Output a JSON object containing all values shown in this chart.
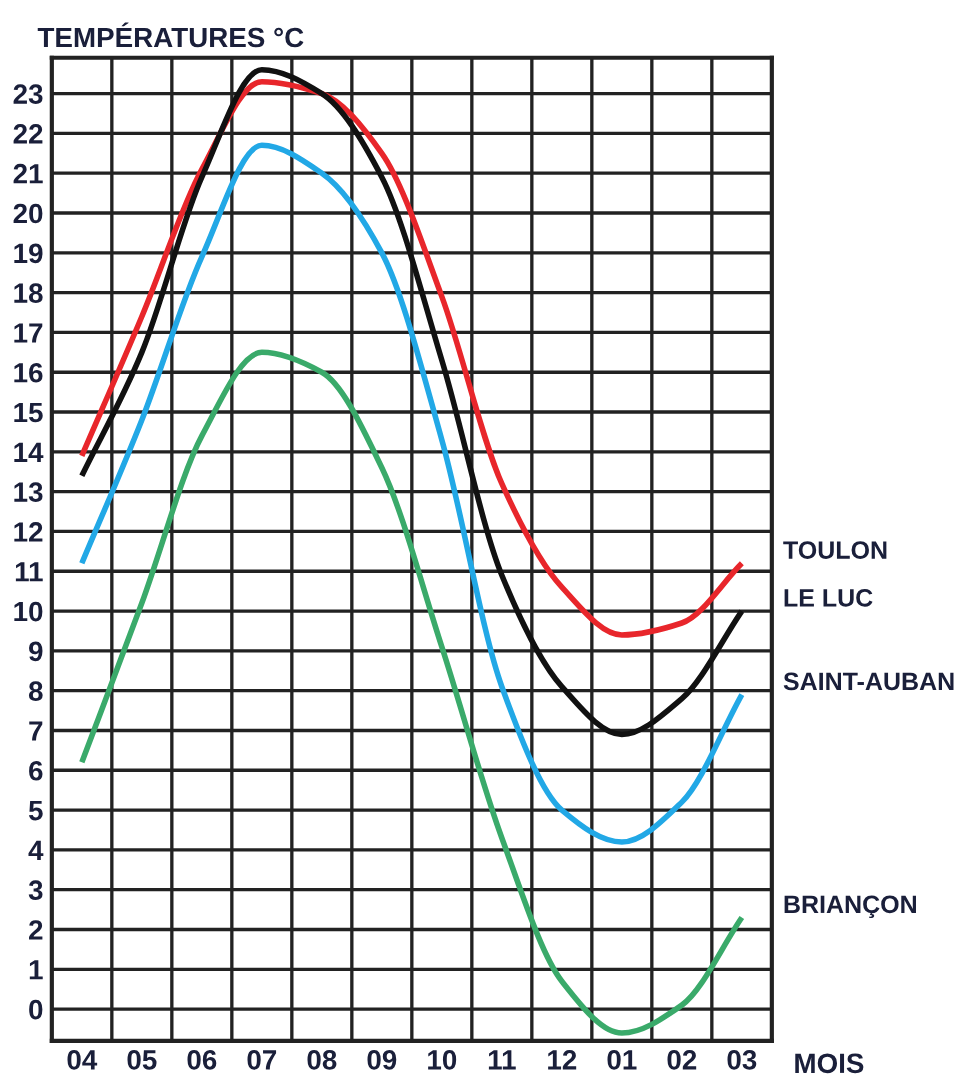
{
  "chart_data": {
    "type": "line",
    "ylabel": "TEMPÉRATURES °C",
    "xlabel": "MOIS",
    "categories": [
      "04",
      "05",
      "06",
      "07",
      "08",
      "09",
      "10",
      "11",
      "12",
      "01",
      "02",
      "03"
    ],
    "ylim": [
      -0.8,
      23.9
    ],
    "yticks": [
      0,
      1,
      2,
      3,
      4,
      5,
      6,
      7,
      8,
      9,
      10,
      11,
      12,
      13,
      14,
      15,
      16,
      17,
      18,
      19,
      20,
      21,
      22,
      23
    ],
    "grid": true,
    "line_style": "solid",
    "series": [
      {
        "name": "TOULON",
        "color": "#e8262b",
        "values": [
          13.9,
          17.4,
          21.1,
          23.3,
          23.0,
          21.5,
          17.9,
          13.2,
          10.6,
          9.4,
          9.7,
          11.2
        ]
      },
      {
        "name": "LE LUC",
        "color": "#111111",
        "values": [
          13.4,
          16.5,
          20.9,
          23.6,
          23.0,
          20.9,
          16.3,
          10.9,
          8.1,
          6.9,
          7.8,
          10.0
        ]
      },
      {
        "name": "SAINT-AUBAN",
        "color": "#22a8e6",
        "values": [
          11.2,
          14.8,
          18.9,
          21.7,
          21.0,
          19.0,
          14.3,
          8.1,
          5.0,
          4.2,
          5.2,
          7.9
        ]
      },
      {
        "name": "BRIANÇON",
        "color": "#3aaa6a",
        "values": [
          6.2,
          10.2,
          14.4,
          16.5,
          16.0,
          13.6,
          9.1,
          4.3,
          0.7,
          -0.6,
          0.1,
          2.3
        ]
      }
    ]
  }
}
